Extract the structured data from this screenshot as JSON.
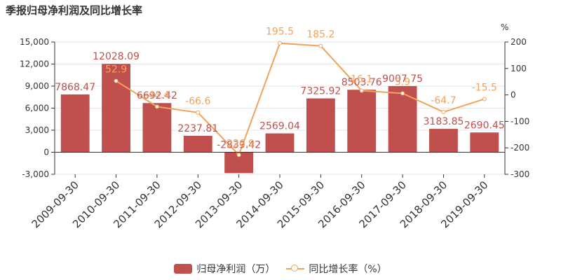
{
  "chart_data": {
    "type": "bar",
    "title": "季报归母净利润及同比增长率",
    "right_axis_unit": "%",
    "categories": [
      "2009-09-30",
      "2010-09-30",
      "2011-09-30",
      "2012-09-30",
      "2013-09-30",
      "2014-09-30",
      "2015-09-30",
      "2016-09-30",
      "2017-09-30",
      "2018-09-30",
      "2019-09-30"
    ],
    "series": [
      {
        "name": "归母净利润（万）",
        "type": "bar",
        "axis": "left",
        "values": [
          7868.47,
          12028.09,
          6692.42,
          2237.81,
          -2839.42,
          2569.04,
          7325.92,
          8503.76,
          9007.75,
          3183.85,
          2690.45
        ],
        "labels": [
          "7868.47",
          "12028.09",
          "6692.42",
          "2237.81",
          "-2839.42",
          "2569.04",
          "7325.92",
          "8503.76",
          "9007.75",
          "3183.85",
          "2690.45"
        ]
      },
      {
        "name": "同比增长率（%）",
        "type": "line",
        "axis": "right",
        "values": [
          null,
          52.9,
          -44.4,
          -66.6,
          -226.9,
          195.5,
          185.2,
          16.1,
          5.9,
          -64.7,
          -15.5
        ],
        "labels": [
          "",
          "52.9",
          "-44.4",
          "-66.6",
          "-226.9",
          "195.5",
          "185.2",
          "16.1",
          "5.9",
          "-64.7",
          "-15.5"
        ]
      }
    ],
    "y_left": {
      "range": [
        -3000,
        15000
      ],
      "ticks": [
        -3000,
        0,
        3000,
        6000,
        9000,
        12000,
        15000
      ],
      "tick_labels": [
        "-3,000",
        "0",
        "3,000",
        "6,000",
        "9,000",
        "12,000",
        "15,000"
      ]
    },
    "y_right": {
      "range": [
        -300,
        200
      ],
      "ticks": [
        -300,
        -200,
        -100,
        0,
        100,
        200
      ],
      "tick_labels": [
        "-300",
        "-200",
        "-100",
        "0",
        "100",
        "200"
      ]
    },
    "grid": true,
    "legend_position": "bottom",
    "colors": {
      "bar": "#c0504d",
      "line": "#f3a25a",
      "bar_label": "#c0504d",
      "line_label": "#f3a25a",
      "grid": "#e6e6e6",
      "axis_text": "#333333"
    }
  }
}
